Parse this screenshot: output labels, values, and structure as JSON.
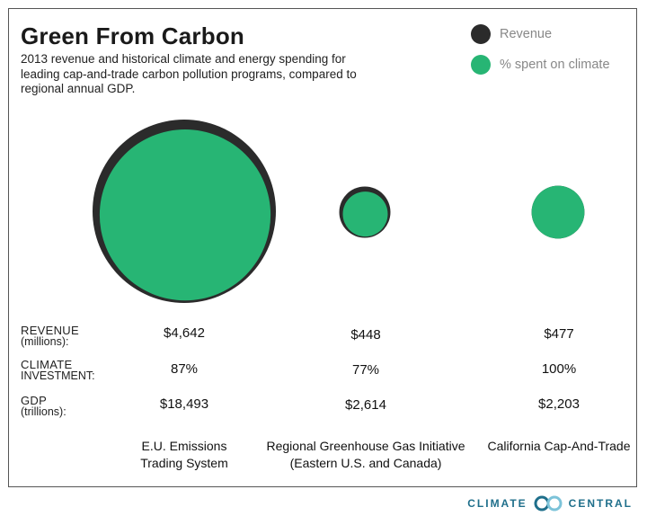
{
  "title": "Green From Carbon",
  "subtitle": "2013 revenue and historical climate and energy spending for leading cap-and-trade carbon pollution programs, compared to regional annual GDP.",
  "legend": [
    {
      "label": "Revenue",
      "color": "#2b2b2b"
    },
    {
      "label": "% spent on climate",
      "color": "#27b574"
    }
  ],
  "rows": {
    "revenue": {
      "main": "REVENUE",
      "sub": "(millions):"
    },
    "climate": {
      "main": "CLIMATE",
      "sub": "INVESTMENT:"
    },
    "gdp": {
      "main": "GDP",
      "sub": "(trillions):"
    }
  },
  "chart_data": {
    "type": "bubble",
    "title": "Green From Carbon",
    "categories": [
      "E.U. Emissions Trading System",
      "Regional Greenhouse Gas Initiative (Eastern U.S. and Canada)",
      "California Cap-And-Trade"
    ],
    "series": [
      {
        "name": "Revenue",
        "color": "#2b2b2b",
        "values": [
          4642,
          448,
          477
        ]
      },
      {
        "name": "% spent on climate",
        "color": "#27b574",
        "values": [
          87,
          77,
          100
        ]
      }
    ],
    "gdp": [
      18493,
      2614,
      2203
    ],
    "programs": [
      {
        "name_lines": [
          "E.U. Emissions",
          "Trading System"
        ],
        "revenue": "$4,642",
        "climate": "87%",
        "gdp": "$18,493",
        "revenue_value": 4642,
        "gdp_value": 18493,
        "climate_pct": 87
      },
      {
        "name_lines": [
          "Regional Greenhouse Gas Initiative",
          "(Eastern U.S. and Canada)"
        ],
        "revenue": "$448",
        "climate": "77%",
        "gdp": "$2,614",
        "revenue_value": 448,
        "gdp_value": 2614,
        "climate_pct": 77
      },
      {
        "name_lines": [
          "California Cap-And-Trade",
          ""
        ],
        "revenue": "$477",
        "climate": "100%",
        "gdp": "$2,203",
        "revenue_value": 477,
        "gdp_value": 2203,
        "climate_pct": 100
      }
    ]
  },
  "footer": {
    "left": "CLIMATE",
    "right": "CENTRAL"
  }
}
